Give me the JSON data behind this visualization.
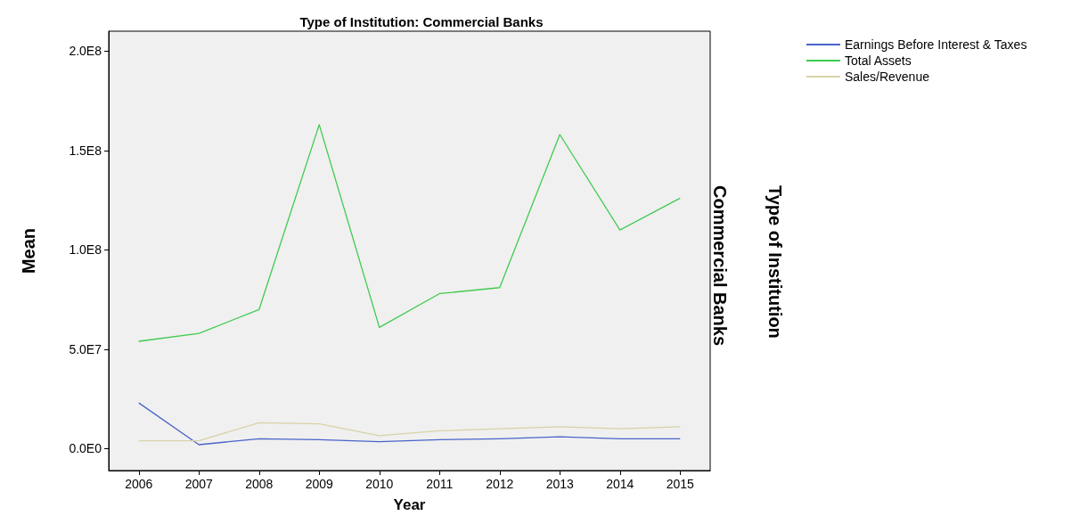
{
  "chart_data": {
    "type": "line",
    "title": "Type of Institution: Commercial Banks",
    "xlabel": "Year",
    "ylabel": "Mean",
    "annotations": [
      "Commercial Banks",
      "Type of Institution"
    ],
    "categories": [
      "2006",
      "2007",
      "2008",
      "2009",
      "2010",
      "2011",
      "2012",
      "2013",
      "2014",
      "2015"
    ],
    "series": [
      {
        "name": "Earnings Before Interest & Taxes",
        "color": "#4a64c8",
        "values": [
          23000000,
          2000000,
          5000000,
          4500000,
          3500000,
          4500000,
          5000000,
          6000000,
          5000000,
          5000000
        ]
      },
      {
        "name": "Total Assets",
        "color": "#3fcb4f",
        "values": [
          54000000,
          58000000,
          70000000,
          163000000,
          61000000,
          78000000,
          81000000,
          158000000,
          110000000,
          126000000
        ]
      },
      {
        "name": "Sales/Revenue",
        "color": "#d8d2a8",
        "values": [
          4000000,
          4000000,
          13000000,
          12500000,
          6500000,
          9000000,
          10000000,
          11000000,
          10000000,
          11000000
        ]
      }
    ],
    "ylim": [
      -11000000,
      210000000
    ],
    "yticks": [
      {
        "value": 0,
        "label": "0.0E0"
      },
      {
        "value": 50000000,
        "label": "5.0E7"
      },
      {
        "value": 100000000,
        "label": "1.0E8"
      },
      {
        "value": 150000000,
        "label": "1.5E8"
      },
      {
        "value": 200000000,
        "label": "2.0E8"
      }
    ],
    "grid": false,
    "legend": "top right",
    "marker": "none",
    "line_style": "solid"
  }
}
